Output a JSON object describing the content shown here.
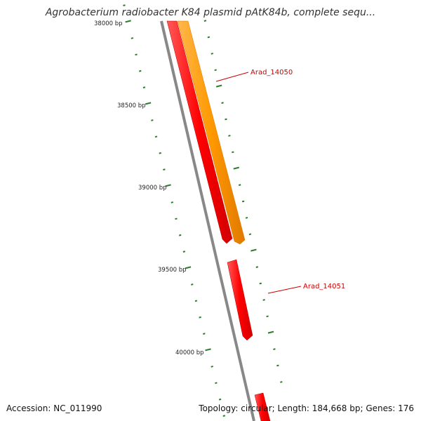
{
  "title": "Agrobacterium radiobacter K84 plasmid pAtK84b, complete sequ...",
  "footer": {
    "accession": "Accession: NC_011990",
    "summary": "Topology: circular; Length: 184,668 bp; Genes: 176"
  },
  "ruler": {
    "labels": [
      "38000 bp",
      "38500 bp",
      "39000 bp",
      "39500 bp",
      "40000 bp"
    ],
    "tick_color": "#2e7d2e"
  },
  "genes": [
    {
      "name": "Arad_14050",
      "color": "#ff9900"
    },
    {
      "name": "Arad_14051",
      "color": "#ff0000"
    }
  ],
  "colors": {
    "backbone": "#888888",
    "orange_feature": "#ff9900",
    "red_feature": "#ff0000",
    "label": "#cc0000"
  }
}
